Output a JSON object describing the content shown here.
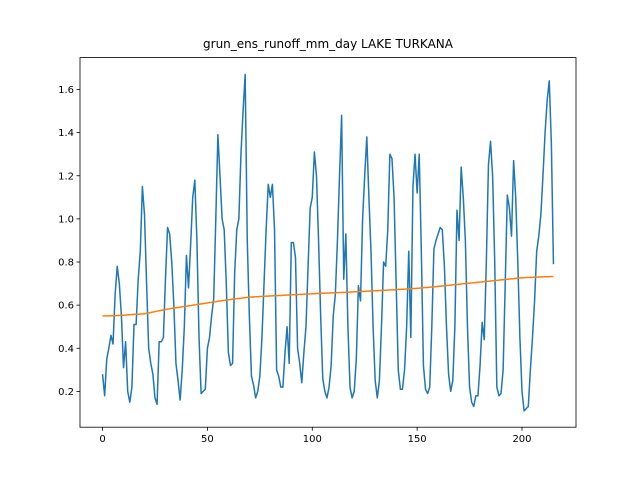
{
  "chart_data": {
    "type": "line",
    "title": "grun_ens_runoff_mm_day LAKE TURKANA",
    "x": [
      0,
      1,
      2,
      3,
      4,
      5,
      6,
      7,
      8,
      9,
      10,
      11,
      12,
      13,
      14,
      15,
      16,
      17,
      18,
      19,
      20,
      21,
      22,
      23,
      24,
      25,
      26,
      27,
      28,
      29,
      30,
      31,
      32,
      33,
      34,
      35,
      36,
      37,
      38,
      39,
      40,
      41,
      42,
      43,
      44,
      45,
      46,
      47,
      48,
      49,
      50,
      51,
      52,
      53,
      54,
      55,
      56,
      57,
      58,
      59,
      60,
      61,
      62,
      63,
      64,
      65,
      66,
      67,
      68,
      69,
      70,
      71,
      72,
      73,
      74,
      75,
      76,
      77,
      78,
      79,
      80,
      81,
      82,
      83,
      84,
      85,
      86,
      87,
      88,
      89,
      90,
      91,
      92,
      93,
      94,
      95,
      96,
      97,
      98,
      99,
      100,
      101,
      102,
      103,
      104,
      105,
      106,
      107,
      108,
      109,
      110,
      111,
      112,
      113,
      114,
      115,
      116,
      117,
      118,
      119,
      120,
      121,
      122,
      123,
      124,
      125,
      126,
      127,
      128,
      129,
      130,
      131,
      132,
      133,
      134,
      135,
      136,
      137,
      138,
      139,
      140,
      141,
      142,
      143,
      144,
      145,
      146,
      147,
      148,
      149,
      150,
      151,
      152,
      153,
      154,
      155,
      156,
      157,
      158,
      159,
      160,
      161,
      162,
      163,
      164,
      165,
      166,
      167,
      168,
      169,
      170,
      171,
      172,
      173,
      174,
      175,
      176,
      177,
      178,
      179,
      180,
      181,
      182,
      183,
      184,
      185,
      186,
      187,
      188,
      189,
      190,
      191,
      192,
      193,
      194,
      195,
      196,
      197,
      198,
      199,
      200,
      201,
      202,
      203,
      204,
      205,
      206,
      207,
      208,
      209,
      210,
      211,
      212,
      213,
      214,
      215
    ],
    "series": [
      {
        "color": "#1f77b4",
        "values": [
          0.28,
          0.18,
          0.35,
          0.4,
          0.46,
          0.42,
          0.65,
          0.78,
          0.7,
          0.55,
          0.31,
          0.43,
          0.2,
          0.15,
          0.22,
          0.51,
          0.51,
          0.72,
          0.85,
          1.15,
          1.02,
          0.7,
          0.4,
          0.33,
          0.28,
          0.17,
          0.14,
          0.43,
          0.43,
          0.45,
          0.72,
          0.96,
          0.93,
          0.8,
          0.6,
          0.33,
          0.25,
          0.16,
          0.3,
          0.5,
          0.83,
          0.68,
          0.88,
          1.1,
          1.18,
          0.9,
          0.45,
          0.19,
          0.2,
          0.21,
          0.4,
          0.45,
          0.55,
          0.63,
          1.0,
          1.39,
          1.2,
          1.0,
          0.95,
          0.7,
          0.38,
          0.32,
          0.33,
          0.75,
          0.95,
          1.0,
          1.3,
          1.5,
          1.67,
          0.9,
          0.55,
          0.27,
          0.23,
          0.17,
          0.2,
          0.27,
          0.45,
          0.7,
          0.95,
          1.16,
          1.1,
          1.16,
          0.95,
          0.3,
          0.27,
          0.22,
          0.22,
          0.38,
          0.5,
          0.33,
          0.89,
          0.89,
          0.82,
          0.4,
          0.33,
          0.24,
          0.38,
          0.5,
          0.78,
          1.05,
          1.1,
          1.31,
          1.2,
          0.9,
          0.55,
          0.26,
          0.2,
          0.17,
          0.22,
          0.32,
          0.55,
          0.65,
          0.9,
          1.2,
          1.48,
          0.72,
          0.93,
          0.5,
          0.22,
          0.17,
          0.2,
          0.35,
          0.69,
          0.62,
          1.0,
          1.2,
          1.38,
          1.1,
          0.85,
          0.5,
          0.25,
          0.17,
          0.25,
          0.5,
          0.8,
          0.78,
          0.95,
          1.3,
          1.28,
          1.1,
          0.7,
          0.3,
          0.21,
          0.21,
          0.3,
          0.5,
          0.85,
          0.45,
          1.15,
          1.3,
          1.12,
          1.3,
          0.85,
          0.32,
          0.21,
          0.19,
          0.22,
          0.5,
          0.86,
          0.9,
          0.93,
          0.96,
          0.95,
          0.78,
          0.5,
          0.28,
          0.2,
          0.25,
          0.5,
          1.04,
          0.9,
          1.24,
          1.1,
          0.9,
          0.5,
          0.22,
          0.15,
          0.13,
          0.18,
          0.18,
          0.32,
          0.52,
          0.44,
          0.8,
          1.25,
          1.36,
          1.2,
          0.8,
          0.22,
          0.18,
          0.19,
          0.3,
          0.7,
          1.11,
          1.05,
          0.92,
          1.27,
          1.1,
          0.8,
          0.45,
          0.2,
          0.11,
          0.12,
          0.13,
          0.3,
          0.45,
          0.62,
          0.85,
          0.92,
          1.02,
          1.2,
          1.4,
          1.55,
          1.64,
          1.35,
          0.79
        ]
      },
      {
        "color": "#ff7f0e",
        "values": [
          0.55,
          0.55,
          0.55,
          0.55,
          0.551,
          0.551,
          0.551,
          0.552,
          0.552,
          0.553,
          0.553,
          0.554,
          0.555,
          0.556,
          0.556,
          0.557,
          0.558,
          0.558,
          0.559,
          0.559,
          0.56,
          0.562,
          0.564,
          0.566,
          0.568,
          0.57,
          0.572,
          0.574,
          0.576,
          0.578,
          0.58,
          0.582,
          0.583,
          0.585,
          0.586,
          0.588,
          0.589,
          0.591,
          0.592,
          0.594,
          0.595,
          0.597,
          0.598,
          0.6,
          0.601,
          0.603,
          0.604,
          0.606,
          0.607,
          0.609,
          0.61,
          0.612,
          0.613,
          0.615,
          0.616,
          0.618,
          0.619,
          0.621,
          0.622,
          0.624,
          0.625,
          0.626,
          0.628,
          0.629,
          0.63,
          0.631,
          0.632,
          0.634,
          0.635,
          0.636,
          0.637,
          0.638,
          0.638,
          0.639,
          0.639,
          0.64,
          0.641,
          0.641,
          0.642,
          0.642,
          0.643,
          0.643,
          0.644,
          0.644,
          0.645,
          0.645,
          0.646,
          0.646,
          0.647,
          0.647,
          0.648,
          0.648,
          0.649,
          0.649,
          0.65,
          0.65,
          0.651,
          0.651,
          0.652,
          0.652,
          0.653,
          0.653,
          0.654,
          0.654,
          0.655,
          0.655,
          0.655,
          0.656,
          0.656,
          0.657,
          0.657,
          0.657,
          0.658,
          0.658,
          0.659,
          0.659,
          0.66,
          0.66,
          0.661,
          0.661,
          0.662,
          0.662,
          0.663,
          0.663,
          0.664,
          0.664,
          0.665,
          0.665,
          0.666,
          0.666,
          0.667,
          0.667,
          0.668,
          0.668,
          0.669,
          0.669,
          0.67,
          0.67,
          0.671,
          0.671,
          0.672,
          0.673,
          0.673,
          0.674,
          0.674,
          0.675,
          0.676,
          0.676,
          0.677,
          0.677,
          0.678,
          0.679,
          0.68,
          0.681,
          0.682,
          0.682,
          0.683,
          0.684,
          0.685,
          0.686,
          0.687,
          0.688,
          0.689,
          0.69,
          0.691,
          0.692,
          0.693,
          0.694,
          0.695,
          0.696,
          0.697,
          0.698,
          0.699,
          0.7,
          0.701,
          0.702,
          0.703,
          0.704,
          0.705,
          0.706,
          0.707,
          0.708,
          0.709,
          0.71,
          0.711,
          0.712,
          0.713,
          0.714,
          0.715,
          0.716,
          0.717,
          0.718,
          0.719,
          0.72,
          0.721,
          0.722,
          0.723,
          0.724,
          0.725,
          0.726,
          0.727,
          0.727,
          0.728,
          0.728,
          0.729,
          0.729,
          0.73,
          0.73,
          0.73,
          0.731,
          0.731,
          0.732,
          0.732,
          0.732,
          0.733,
          0.733
        ]
      }
    ],
    "xlim": [
      -10.75,
      225.75
    ],
    "xticks": [
      0,
      50,
      100,
      150,
      200
    ],
    "ylim": [
      0.034,
      1.748
    ],
    "yticks": [
      0.2,
      0.4,
      0.6,
      0.8,
      {
        "value": 1,
        "label": "1.0"
      },
      1.2,
      1.4,
      1.6
    ]
  }
}
